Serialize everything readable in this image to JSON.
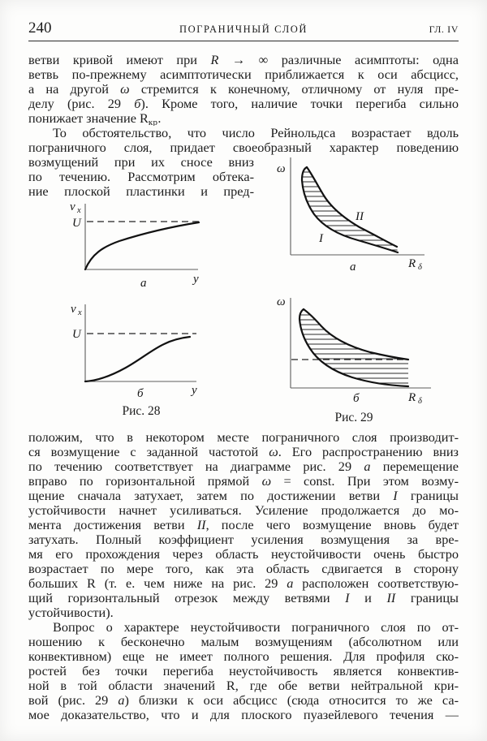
{
  "header": {
    "page_number": "240",
    "running_title": "ПОГРАНИЧНЫЙ СЛОЙ",
    "chapter": "ГЛ. IV"
  },
  "text": {
    "p1": [
      {
        "s": [
          {
            "t": "ветви кривой имеют при "
          },
          {
            "t": "R",
            "i": true
          },
          {
            "t": " → ∞ различные асимптоты: одна"
          }
        ]
      },
      {
        "s": [
          {
            "t": "ветвь по-прежнему асимптотически приближается к оси абсцисс,"
          }
        ]
      },
      {
        "s": [
          {
            "t": "а на другой "
          },
          {
            "t": "ω",
            "i": true
          },
          {
            "t": " стремится к конечному, отличному от нуля пре-"
          }
        ]
      },
      {
        "s": [
          {
            "t": "делу (рис. 29 "
          },
          {
            "t": "б",
            "i": true
          },
          {
            "t": "). Кроме того, наличие точки перегиба сильно"
          }
        ]
      },
      {
        "last": true,
        "s": [
          {
            "t": "понижает значение R"
          },
          {
            "t": "кр",
            "sub": true
          },
          {
            "t": "."
          }
        ]
      }
    ],
    "p2": [
      {
        "ind": true,
        "s": [
          {
            "t": "То обстоятельство, что число Рейнольдса возрастает вдоль"
          }
        ]
      },
      {
        "s": [
          {
            "t": "пограничного слоя, придает своеобразный характер поведению"
          }
        ]
      }
    ],
    "p2_narrow": [
      {
        "s": [
          {
            "t": "возмущений при их сносе вниз"
          }
        ]
      },
      {
        "s": [
          {
            "t": "по течению. Рассмотрим обтека-"
          }
        ]
      },
      {
        "s": [
          {
            "t": "ние плоской пластинки и пред-"
          }
        ]
      }
    ],
    "p3": [
      {
        "s": [
          {
            "t": "положим, что в некотором месте пограничного слоя производит-"
          }
        ]
      },
      {
        "s": [
          {
            "t": "ся возмущение с заданной частотой "
          },
          {
            "t": "ω",
            "i": true
          },
          {
            "t": ". Его распространению вниз"
          }
        ]
      },
      {
        "s": [
          {
            "t": "по течению соответствует на диаграмме рис. 29 "
          },
          {
            "t": "а",
            "i": true
          },
          {
            "t": " перемещение"
          }
        ]
      },
      {
        "s": [
          {
            "t": "вправо по горизонтальной прямой "
          },
          {
            "t": "ω",
            "i": true
          },
          {
            "t": " = const. При этом возму-"
          }
        ]
      },
      {
        "s": [
          {
            "t": "щение сначала затухает, затем по достижении ветви "
          },
          {
            "t": "I",
            "i": true
          },
          {
            "t": " границы"
          }
        ]
      },
      {
        "s": [
          {
            "t": "устойчивости начнет усиливаться. Усиление продолжается до мо-"
          }
        ]
      },
      {
        "s": [
          {
            "t": "мента достижения ветви "
          },
          {
            "t": "II",
            "i": true
          },
          {
            "t": ", после чего возмущение вновь будет"
          }
        ]
      },
      {
        "s": [
          {
            "t": "затухать. Полный коэффициент усиления возмущения за вре-"
          }
        ]
      },
      {
        "s": [
          {
            "t": "мя его прохождения через область неустойчивости очень быстро"
          }
        ]
      },
      {
        "s": [
          {
            "t": "возрастает по мере того, как эта область сдвигается в сторону"
          }
        ]
      },
      {
        "s": [
          {
            "t": "больших R (т. е. чем ниже на рис. 29 "
          },
          {
            "t": "а",
            "i": true
          },
          {
            "t": " расположен соответствую-"
          }
        ]
      },
      {
        "s": [
          {
            "t": "щий горизонтальный отрезок между ветвями "
          },
          {
            "t": "I",
            "i": true
          },
          {
            "t": " и "
          },
          {
            "t": "II",
            "i": true
          },
          {
            "t": " границы"
          }
        ]
      },
      {
        "last": true,
        "s": [
          {
            "t": "устойчивости)."
          }
        ]
      }
    ],
    "p4": [
      {
        "ind": true,
        "s": [
          {
            "t": "Вопрос о характере неустойчивости пограничного слоя по от-"
          }
        ]
      },
      {
        "s": [
          {
            "t": "ношению к бесконечно малым возмущениям (абсолютном или"
          }
        ]
      },
      {
        "s": [
          {
            "t": "конвективном) еще не имеет полного решения. Для профиля ско-"
          }
        ]
      },
      {
        "s": [
          {
            "t": "ростей без точки перегиба неустойчивость является конвектив-"
          }
        ]
      },
      {
        "s": [
          {
            "t": "ной в той области значений R, где обе ветви нейтральной кри-"
          }
        ]
      },
      {
        "s": [
          {
            "t": "вой (рис. 29 "
          },
          {
            "t": "а",
            "i": true
          },
          {
            "t": ") близки к оси абсцисс (сюда относится то же са-"
          }
        ]
      },
      {
        "s": [
          {
            "t": "мое доказательство, что и для плоского пуазейлевого течения —"
          }
        ]
      }
    ]
  },
  "figures": {
    "fig28a": {
      "y_axis_main": "v",
      "y_axis_sub": "x",
      "asymptote": "U",
      "x_axis": "y",
      "panel_label": "а"
    },
    "fig28b": {
      "y_axis_main": "v",
      "y_axis_sub": "x",
      "asymptote": "U",
      "x_axis": "y",
      "panel_label": "б"
    },
    "fig29a": {
      "y_axis": "ω",
      "x_axis_main": "R",
      "x_axis_sub": "δ",
      "branch_lower": "I",
      "branch_upper": "II",
      "panel_label": "а"
    },
    "fig29b": {
      "y_axis": "ω",
      "x_axis_main": "R",
      "x_axis_sub": "δ",
      "panel_label": "б"
    },
    "caption28": "Рис. 28",
    "caption29": "Рис. 29"
  },
  "colors": {
    "ink": "#1c1c1c",
    "axis_gray": "#5d5d5d",
    "paper": "#fdfdfc"
  }
}
